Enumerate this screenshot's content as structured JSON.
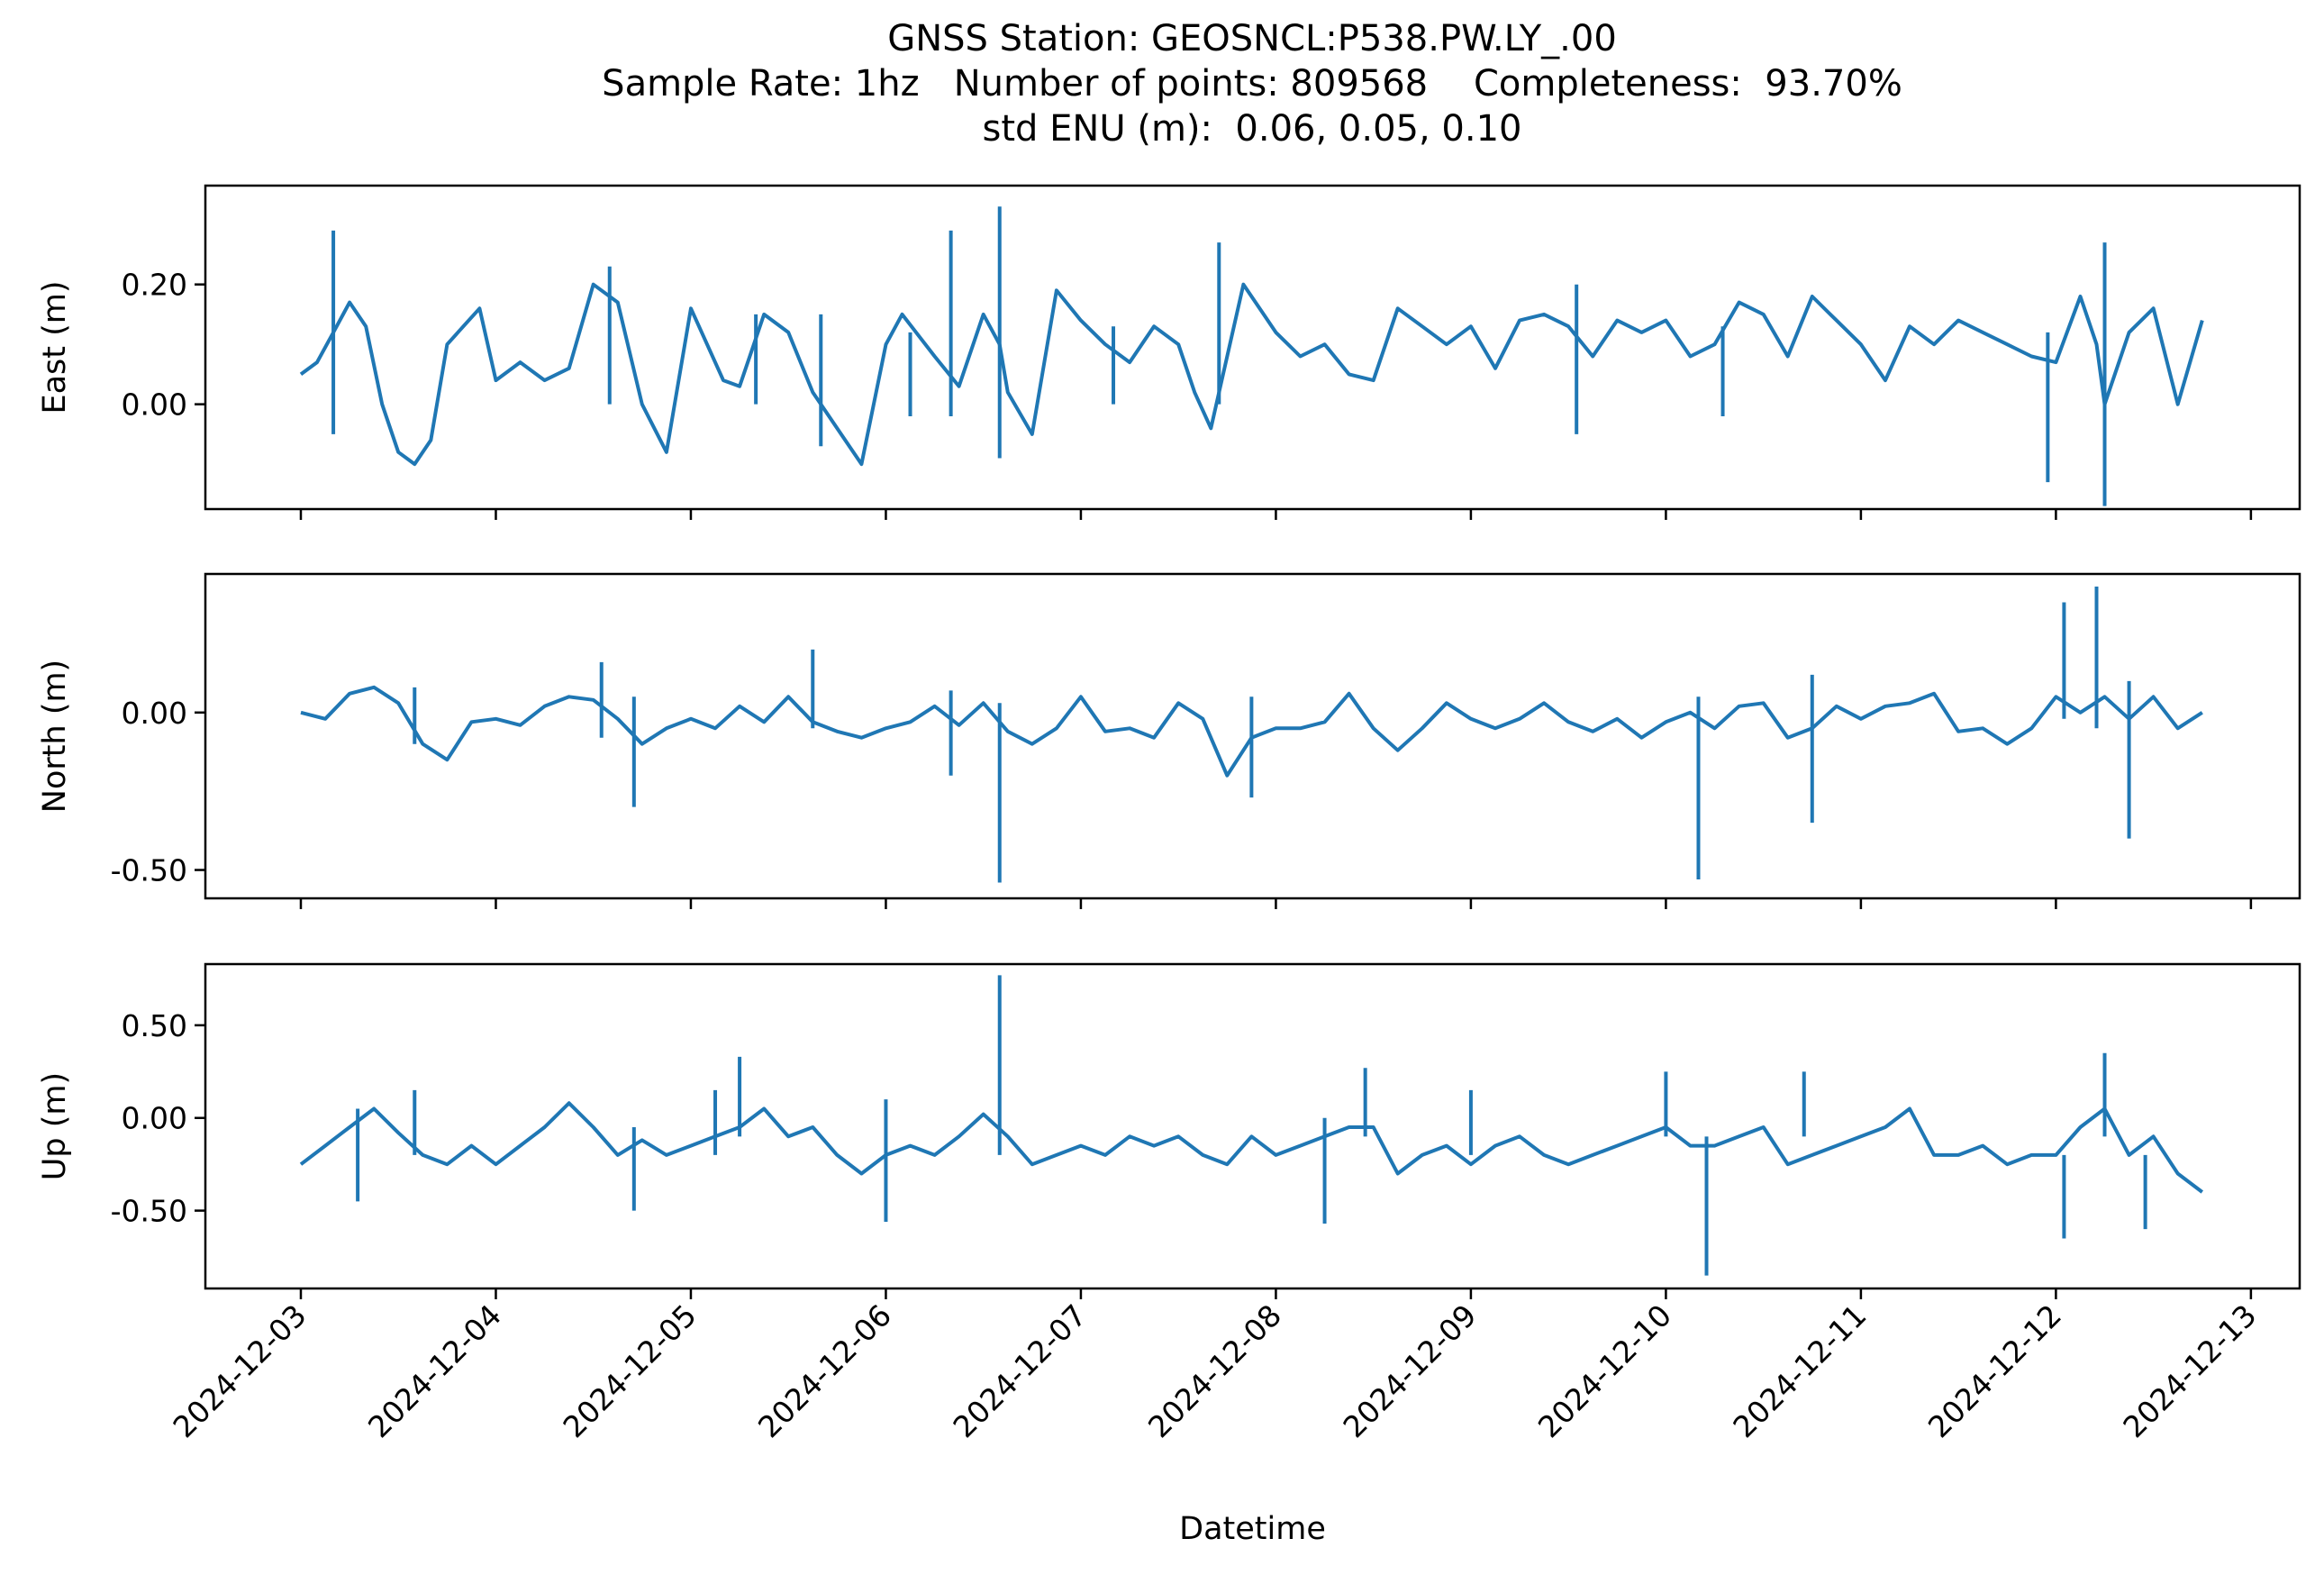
{
  "title_lines": [
    "GNSS Station: GEOSNCL:P538.PW.LY_.00",
    "Sample Rate: 1hz   Number of points: 809568    Completeness:  93.70%",
    "std ENU (m):  0.06, 0.05, 0.10"
  ],
  "colors": {
    "series": "#1f77b4",
    "axes": "#000000"
  },
  "chart_data": [
    {
      "type": "line",
      "ylabel": "East (m)",
      "yticks": [
        {
          "value": 0.0,
          "label": "0.00"
        },
        {
          "value": 0.2,
          "label": "0.20"
        }
      ],
      "ylim": [
        -0.175,
        0.365
      ],
      "xlim": [
        "2024-12-02T12:15",
        "2024-12-13T06:00"
      ],
      "xtick_labels_visible": false,
      "series": [
        {
          "x": [
            "2024-12-03T00:00",
            "2024-12-03T02:00",
            "2024-12-03T04:00",
            "2024-12-03T06:00",
            "2024-12-03T08:00",
            "2024-12-03T10:00",
            "2024-12-03T12:00",
            "2024-12-03T14:00",
            "2024-12-03T16:00",
            "2024-12-03T18:00",
            "2024-12-03T20:00",
            "2024-12-03T22:00",
            "2024-12-04T00:00",
            "2024-12-04T03:00",
            "2024-12-04T06:00",
            "2024-12-04T09:00",
            "2024-12-04T12:00",
            "2024-12-04T15:00",
            "2024-12-04T18:00",
            "2024-12-04T21:00",
            "2024-12-05T00:00",
            "2024-12-05T04:00",
            "2024-12-05T06:00",
            "2024-12-05T09:00",
            "2024-12-05T12:00",
            "2024-12-05T15:00",
            "2024-12-05T18:00",
            "2024-12-05T21:00",
            "2024-12-06T00:00",
            "2024-12-06T02:00",
            "2024-12-06T06:00",
            "2024-12-06T09:00",
            "2024-12-06T12:00",
            "2024-12-06T14:00",
            "2024-12-06T15:00",
            "2024-12-06T18:00",
            "2024-12-06T21:00",
            "2024-12-07T00:00",
            "2024-12-07T03:00",
            "2024-12-07T06:00",
            "2024-12-07T09:00",
            "2024-12-07T12:00",
            "2024-12-07T14:00",
            "2024-12-07T16:00",
            "2024-12-07T20:00",
            "2024-12-08T00:00",
            "2024-12-08T03:00",
            "2024-12-08T06:00",
            "2024-12-08T09:00",
            "2024-12-08T12:00",
            "2024-12-08T15:00",
            "2024-12-08T18:00",
            "2024-12-08T21:00",
            "2024-12-09T00:00",
            "2024-12-09T03:00",
            "2024-12-09T06:00",
            "2024-12-09T09:00",
            "2024-12-09T12:00",
            "2024-12-09T15:00",
            "2024-12-09T18:00",
            "2024-12-09T21:00",
            "2024-12-10T00:00",
            "2024-12-10T03:00",
            "2024-12-10T06:00",
            "2024-12-10T09:00",
            "2024-12-10T12:00",
            "2024-12-10T15:00",
            "2024-12-10T18:00",
            "2024-12-10T21:00",
            "2024-12-11T00:00",
            "2024-12-11T03:00",
            "2024-12-11T06:00",
            "2024-12-11T09:00",
            "2024-12-11T12:00",
            "2024-12-11T15:00",
            "2024-12-11T18:00",
            "2024-12-11T21:00",
            "2024-12-12T00:00",
            "2024-12-12T03:00",
            "2024-12-12T05:00",
            "2024-12-12T06:00",
            "2024-12-12T09:00",
            "2024-12-12T12:00",
            "2024-12-12T15:00",
            "2024-12-12T18:00"
          ],
          "y": [
            0.05,
            0.07,
            0.12,
            0.17,
            0.13,
            0.0,
            -0.08,
            -0.1,
            -0.06,
            0.1,
            0.13,
            0.16,
            0.04,
            0.07,
            0.04,
            0.06,
            0.2,
            0.17,
            0.0,
            -0.08,
            0.16,
            0.04,
            0.03,
            0.15,
            0.12,
            0.02,
            -0.04,
            -0.1,
            0.1,
            0.15,
            0.08,
            0.03,
            0.15,
            0.1,
            0.02,
            -0.05,
            0.19,
            0.14,
            0.1,
            0.07,
            0.13,
            0.1,
            0.02,
            -0.04,
            0.2,
            0.12,
            0.08,
            0.1,
            0.05,
            0.04,
            0.16,
            0.13,
            0.1,
            0.13,
            0.06,
            0.14,
            0.15,
            0.13,
            0.08,
            0.14,
            0.12,
            0.14,
            0.08,
            0.1,
            0.17,
            0.15,
            0.08,
            0.18,
            0.14,
            0.1,
            0.04,
            0.13,
            0.1,
            0.14,
            0.12,
            0.1,
            0.08,
            0.07,
            0.18,
            0.1,
            0.0,
            0.12,
            0.16,
            0.0,
            0.14
          ]
        }
      ],
      "spikes": [
        [
          "2024-12-03T04:00",
          0.29,
          -0.05
        ],
        [
          "2024-12-04T14:00",
          0.23,
          0.0
        ],
        [
          "2024-12-05T08:00",
          0.15,
          0.0
        ],
        [
          "2024-12-05T16:00",
          0.15,
          -0.07
        ],
        [
          "2024-12-06T03:00",
          0.12,
          -0.02
        ],
        [
          "2024-12-06T08:00",
          0.29,
          -0.02
        ],
        [
          "2024-12-06T14:00",
          0.33,
          -0.09
        ],
        [
          "2024-12-07T04:00",
          0.13,
          0.0
        ],
        [
          "2024-12-07T17:00",
          0.27,
          0.0
        ],
        [
          "2024-12-09T13:00",
          0.2,
          -0.05
        ],
        [
          "2024-12-10T07:00",
          0.13,
          -0.02
        ],
        [
          "2024-12-11T23:00",
          0.12,
          -0.13
        ],
        [
          "2024-12-12T06:00",
          0.27,
          -0.17
        ]
      ]
    },
    {
      "type": "line",
      "ylabel": "North (m)",
      "yticks": [
        {
          "value": 0.0,
          "label": "0.00"
        },
        {
          "value": -0.5,
          "label": "-0.50"
        }
      ],
      "ylim": [
        -0.59,
        0.44
      ],
      "xlim": [
        "2024-12-02T12:15",
        "2024-12-13T06:00"
      ],
      "xtick_labels_visible": false,
      "series": [
        {
          "x": [
            "2024-12-03T00:00",
            "2024-12-03T03:00",
            "2024-12-03T06:00",
            "2024-12-03T09:00",
            "2024-12-03T12:00",
            "2024-12-03T15:00",
            "2024-12-03T18:00",
            "2024-12-03T21:00",
            "2024-12-04T00:00",
            "2024-12-04T03:00",
            "2024-12-04T06:00",
            "2024-12-04T09:00",
            "2024-12-04T12:00",
            "2024-12-04T15:00",
            "2024-12-04T18:00",
            "2024-12-04T21:00",
            "2024-12-05T00:00",
            "2024-12-05T03:00",
            "2024-12-05T06:00",
            "2024-12-05T09:00",
            "2024-12-05T12:00",
            "2024-12-05T15:00",
            "2024-12-05T18:00",
            "2024-12-05T21:00",
            "2024-12-06T00:00",
            "2024-12-06T03:00",
            "2024-12-06T06:00",
            "2024-12-06T09:00",
            "2024-12-06T12:00",
            "2024-12-06T15:00",
            "2024-12-06T18:00",
            "2024-12-06T21:00",
            "2024-12-07T00:00",
            "2024-12-07T03:00",
            "2024-12-07T06:00",
            "2024-12-07T09:00",
            "2024-12-07T12:00",
            "2024-12-07T15:00",
            "2024-12-07T18:00",
            "2024-12-07T21:00",
            "2024-12-08T00:00",
            "2024-12-08T03:00",
            "2024-12-08T06:00",
            "2024-12-08T09:00",
            "2024-12-08T12:00",
            "2024-12-08T15:00",
            "2024-12-08T18:00",
            "2024-12-08T21:00",
            "2024-12-09T00:00",
            "2024-12-09T03:00",
            "2024-12-09T06:00",
            "2024-12-09T09:00",
            "2024-12-09T12:00",
            "2024-12-09T15:00",
            "2024-12-09T18:00",
            "2024-12-09T21:00",
            "2024-12-10T00:00",
            "2024-12-10T03:00",
            "2024-12-10T06:00",
            "2024-12-10T09:00",
            "2024-12-10T12:00",
            "2024-12-10T15:00",
            "2024-12-10T18:00",
            "2024-12-10T21:00",
            "2024-12-11T00:00",
            "2024-12-11T03:00",
            "2024-12-11T06:00",
            "2024-12-11T09:00",
            "2024-12-11T12:00",
            "2024-12-11T15:00",
            "2024-12-11T18:00",
            "2024-12-11T21:00",
            "2024-12-12T00:00",
            "2024-12-12T03:00",
            "2024-12-12T06:00",
            "2024-12-12T09:00",
            "2024-12-12T12:00",
            "2024-12-12T15:00",
            "2024-12-12T18:00"
          ],
          "y": [
            0.0,
            -0.02,
            0.06,
            0.08,
            0.03,
            -0.1,
            -0.15,
            -0.03,
            -0.02,
            -0.04,
            0.02,
            0.05,
            0.04,
            -0.02,
            -0.1,
            -0.05,
            -0.02,
            -0.05,
            0.02,
            -0.03,
            0.05,
            -0.03,
            -0.06,
            -0.08,
            -0.05,
            -0.03,
            0.02,
            -0.04,
            0.03,
            -0.06,
            -0.1,
            -0.05,
            0.05,
            -0.06,
            -0.05,
            -0.08,
            0.03,
            -0.02,
            -0.2,
            -0.08,
            -0.05,
            -0.05,
            -0.03,
            0.06,
            -0.05,
            -0.12,
            -0.05,
            0.03,
            -0.02,
            -0.05,
            -0.02,
            0.03,
            -0.03,
            -0.06,
            -0.02,
            -0.08,
            -0.03,
            0.0,
            -0.05,
            0.02,
            0.03,
            -0.08,
            -0.05,
            0.02,
            -0.02,
            0.02,
            0.03,
            0.06,
            -0.06,
            -0.05,
            -0.1,
            -0.05,
            0.05,
            0.0,
            0.05,
            -0.02,
            0.05,
            -0.05,
            0.0
          ]
        }
      ],
      "spikes": [
        [
          "2024-12-03T14:00",
          0.08,
          -0.1
        ],
        [
          "2024-12-04T13:00",
          0.16,
          -0.08
        ],
        [
          "2024-12-04T17:00",
          0.05,
          -0.3
        ],
        [
          "2024-12-05T15:00",
          0.2,
          -0.05
        ],
        [
          "2024-12-06T08:00",
          0.07,
          -0.2
        ],
        [
          "2024-12-06T14:00",
          0.03,
          -0.54
        ],
        [
          "2024-12-07T21:00",
          0.05,
          -0.27
        ],
        [
          "2024-12-10T04:00",
          0.05,
          -0.53
        ],
        [
          "2024-12-10T18:00",
          0.12,
          -0.35
        ],
        [
          "2024-12-12T01:00",
          0.35,
          -0.02
        ],
        [
          "2024-12-12T05:00",
          0.4,
          -0.05
        ],
        [
          "2024-12-12T09:00",
          0.1,
          -0.4
        ]
      ]
    },
    {
      "type": "line",
      "ylabel": "Up (m)",
      "yticks": [
        {
          "value": 0.5,
          "label": "0.50"
        },
        {
          "value": 0.0,
          "label": "0.00"
        },
        {
          "value": -0.5,
          "label": "-0.50"
        }
      ],
      "ylim": [
        -0.92,
        0.83
      ],
      "xlim": [
        "2024-12-02T12:15",
        "2024-12-13T06:00"
      ],
      "xtick_labels": [
        "2024-12-03",
        "2024-12-04",
        "2024-12-05",
        "2024-12-06",
        "2024-12-07",
        "2024-12-08",
        "2024-12-09",
        "2024-12-10",
        "2024-12-11",
        "2024-12-12",
        "2024-12-13"
      ],
      "xlabel": "Datetime",
      "series": [
        {
          "x": [
            "2024-12-03T00:00",
            "2024-12-03T03:00",
            "2024-12-03T06:00",
            "2024-12-03T09:00",
            "2024-12-03T12:00",
            "2024-12-03T15:00",
            "2024-12-03T18:00",
            "2024-12-03T21:00",
            "2024-12-04T00:00",
            "2024-12-04T03:00",
            "2024-12-04T06:00",
            "2024-12-04T09:00",
            "2024-12-04T12:00",
            "2024-12-04T15:00",
            "2024-12-04T18:00",
            "2024-12-04T21:00",
            "2024-12-05T00:00",
            "2024-12-05T03:00",
            "2024-12-05T06:00",
            "2024-12-05T09:00",
            "2024-12-05T12:00",
            "2024-12-05T15:00",
            "2024-12-05T18:00",
            "2024-12-05T21:00",
            "2024-12-06T00:00",
            "2024-12-06T03:00",
            "2024-12-06T06:00",
            "2024-12-06T09:00",
            "2024-12-06T12:00",
            "2024-12-06T15:00",
            "2024-12-06T18:00",
            "2024-12-06T21:00",
            "2024-12-07T00:00",
            "2024-12-07T03:00",
            "2024-12-07T06:00",
            "2024-12-07T09:00",
            "2024-12-07T12:00",
            "2024-12-07T15:00",
            "2024-12-07T18:00",
            "2024-12-07T21:00",
            "2024-12-08T00:00",
            "2024-12-08T03:00",
            "2024-12-08T06:00",
            "2024-12-08T09:00",
            "2024-12-08T12:00",
            "2024-12-08T15:00",
            "2024-12-08T18:00",
            "2024-12-08T21:00",
            "2024-12-09T00:00",
            "2024-12-09T03:00",
            "2024-12-09T06:00",
            "2024-12-09T09:00",
            "2024-12-09T12:00",
            "2024-12-09T15:00",
            "2024-12-09T18:00",
            "2024-12-09T21:00",
            "2024-12-10T00:00",
            "2024-12-10T03:00",
            "2024-12-10T06:00",
            "2024-12-10T09:00",
            "2024-12-10T12:00",
            "2024-12-10T15:00",
            "2024-12-10T18:00",
            "2024-12-10T21:00",
            "2024-12-11T00:00",
            "2024-12-11T03:00",
            "2024-12-11T06:00",
            "2024-12-11T09:00",
            "2024-12-11T12:00",
            "2024-12-11T15:00",
            "2024-12-11T18:00",
            "2024-12-11T21:00",
            "2024-12-12T00:00",
            "2024-12-12T03:00",
            "2024-12-12T06:00",
            "2024-12-12T09:00",
            "2024-12-12T12:00",
            "2024-12-12T15:00",
            "2024-12-12T18:00"
          ],
          "y": [
            -0.25,
            -0.15,
            -0.05,
            0.05,
            -0.08,
            -0.2,
            -0.25,
            -0.15,
            -0.25,
            -0.15,
            -0.05,
            0.08,
            -0.05,
            -0.2,
            -0.12,
            -0.2,
            -0.15,
            -0.1,
            -0.05,
            0.05,
            -0.1,
            -0.05,
            -0.2,
            -0.3,
            -0.2,
            -0.15,
            -0.2,
            -0.1,
            0.02,
            -0.1,
            -0.25,
            -0.2,
            -0.15,
            -0.2,
            -0.1,
            -0.15,
            -0.1,
            -0.2,
            -0.25,
            -0.1,
            -0.2,
            -0.15,
            -0.1,
            -0.05,
            -0.05,
            -0.3,
            -0.2,
            -0.15,
            -0.25,
            -0.15,
            -0.1,
            -0.2,
            -0.25,
            -0.2,
            -0.15,
            -0.1,
            -0.05,
            -0.15,
            -0.15,
            -0.1,
            -0.05,
            -0.25,
            -0.2,
            -0.15,
            -0.1,
            -0.05,
            0.05,
            -0.2,
            -0.2,
            -0.15,
            -0.25,
            -0.2,
            -0.2,
            -0.05,
            0.05,
            -0.2,
            -0.1,
            -0.3,
            -0.4
          ]
        }
      ],
      "spikes": [
        [
          "2024-12-03T07:00",
          0.05,
          -0.45
        ],
        [
          "2024-12-03T14:00",
          0.15,
          -0.2
        ],
        [
          "2024-12-04T17:00",
          -0.05,
          -0.5
        ],
        [
          "2024-12-05T03:00",
          0.15,
          -0.2
        ],
        [
          "2024-12-05T06:00",
          0.33,
          -0.1
        ],
        [
          "2024-12-06T00:00",
          0.1,
          -0.56
        ],
        [
          "2024-12-06T14:00",
          0.77,
          -0.2
        ],
        [
          "2024-12-08T06:00",
          0.0,
          -0.57
        ],
        [
          "2024-12-08T11:00",
          0.27,
          -0.1
        ],
        [
          "2024-12-09T00:00",
          0.15,
          -0.2
        ],
        [
          "2024-12-10T00:00",
          0.25,
          -0.1
        ],
        [
          "2024-12-10T05:00",
          -0.1,
          -0.85
        ],
        [
          "2024-12-10T17:00",
          0.25,
          -0.1
        ],
        [
          "2024-12-12T01:00",
          -0.2,
          -0.65
        ],
        [
          "2024-12-12T06:00",
          0.35,
          -0.1
        ],
        [
          "2024-12-12T11:00",
          -0.2,
          -0.6
        ]
      ]
    }
  ]
}
